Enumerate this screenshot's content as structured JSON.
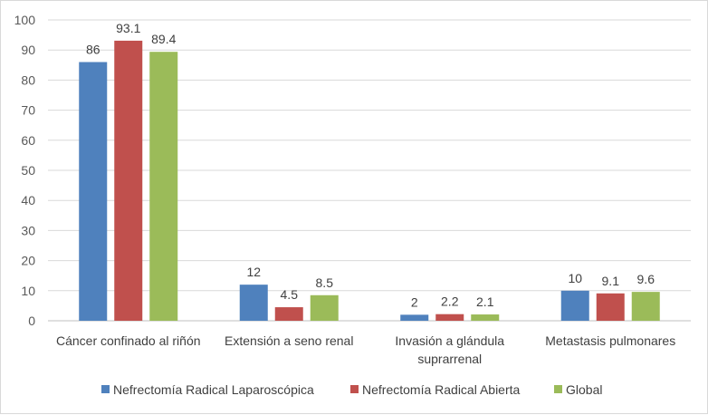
{
  "chart_data": {
    "type": "bar",
    "categories": [
      [
        "Cáncer confinado al riñón"
      ],
      [
        "Extensión a seno renal"
      ],
      [
        "Invasión a glándula",
        "suprarrenal"
      ],
      [
        "Metastasis pulmonares"
      ]
    ],
    "series": [
      {
        "name": "Nefrectomía Radical Laparoscópica",
        "color": "#4f81bd",
        "values": [
          86,
          12,
          2,
          10
        ],
        "labels": [
          "86",
          "12",
          "2",
          "10"
        ]
      },
      {
        "name": "Nefrectomía Radical Abierta",
        "color": "#c0504d",
        "values": [
          93.1,
          4.5,
          2.2,
          9.1
        ],
        "labels": [
          "93.1",
          "4.5",
          "2.2",
          "9.1"
        ]
      },
      {
        "name": "Global",
        "color": "#9bbb59",
        "values": [
          89.4,
          8.5,
          2.1,
          9.6
        ],
        "labels": [
          "89.4",
          "8.5",
          "2.1",
          "9.6"
        ]
      }
    ],
    "ylim": [
      0,
      100
    ],
    "yticks": [
      0,
      10,
      20,
      30,
      40,
      50,
      60,
      70,
      80,
      90,
      100
    ],
    "grid": true,
    "legend_position": "bottom",
    "title": "",
    "xlabel": "",
    "ylabel": ""
  }
}
